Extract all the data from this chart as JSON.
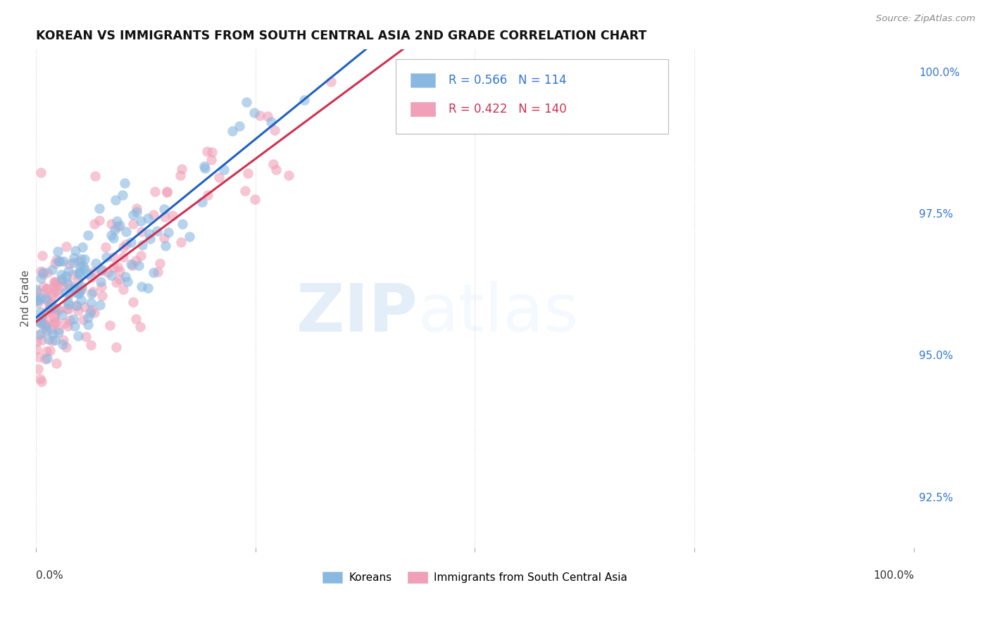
{
  "title": "KOREAN VS IMMIGRANTS FROM SOUTH CENTRAL ASIA 2ND GRADE CORRELATION CHART",
  "source": "Source: ZipAtlas.com",
  "ylabel": "2nd Grade",
  "blue_color": "#89b8e0",
  "pink_color": "#f0a0b8",
  "blue_line_color": "#2060c0",
  "pink_line_color": "#d03050",
  "blue_R": 0.566,
  "blue_N": 114,
  "pink_R": 0.422,
  "pink_N": 140,
  "xlim": [
    0.0,
    1.0
  ],
  "ylim": [
    0.916,
    1.004
  ],
  "yticks": [
    0.925,
    0.95,
    0.975,
    1.0
  ],
  "ytick_labels": [
    "92.5%",
    "95.0%",
    "97.5%",
    "100.0%"
  ],
  "watermark_zip": "ZIP",
  "watermark_atlas": "atlas",
  "legend_label_blue": "Koreans",
  "legend_label_pink": "Immigrants from South Central Asia"
}
